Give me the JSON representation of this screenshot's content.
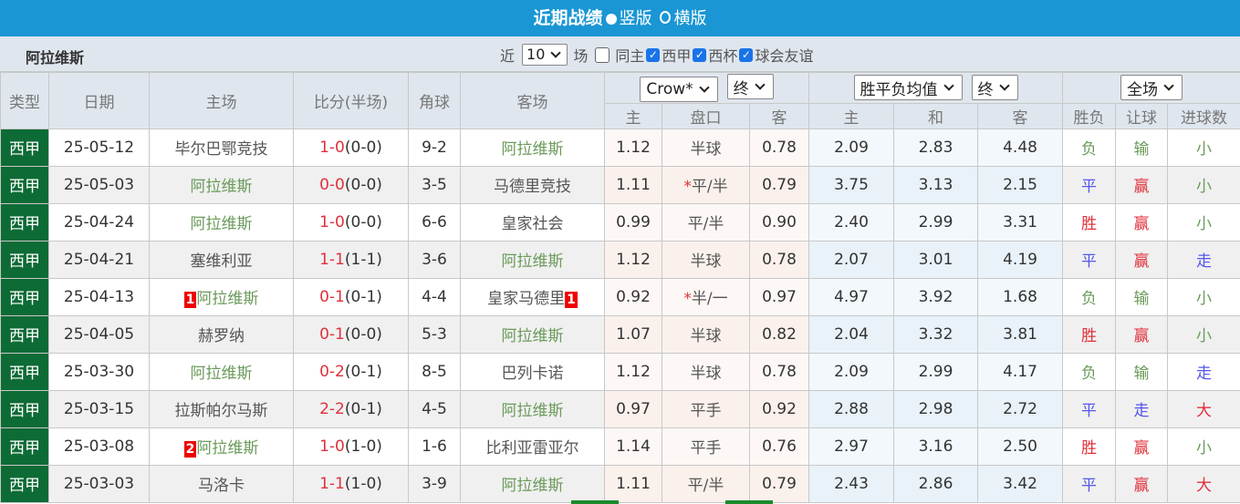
{
  "header": {
    "title": "近期战绩",
    "option_vertical": "竖版",
    "option_horizontal": "横版"
  },
  "team": "阿拉维斯",
  "filters": {
    "near": "近",
    "count": "10",
    "unit": "场",
    "same_home": "同主",
    "leagues": [
      "西甲",
      "西杯",
      "球会友谊"
    ]
  },
  "columns": {
    "type": "类型",
    "date": "日期",
    "home": "主场",
    "score": "比分(半场)",
    "corner": "角球",
    "away": "客场",
    "company": "Crow*",
    "company_mode": "终",
    "odds_type": "胜平负均值",
    "odds_mode": "终",
    "range": "全场",
    "ah": [
      "主",
      "盘口",
      "客"
    ],
    "eu": [
      "主",
      "和",
      "客"
    ],
    "res": [
      "胜负",
      "让球",
      "进球数"
    ]
  },
  "rows": [
    {
      "type": "西甲",
      "date": "25-05-12",
      "home": "毕尔巴鄂竞技",
      "home_card": "",
      "ft": "1-0",
      "ht": "(0-0)",
      "corner": "9-2",
      "away": "阿拉维斯",
      "away_card": "",
      "ah_h": "1.12",
      "ah_line": "半球",
      "ah_star": "",
      "ah_a": "0.78",
      "eu_h": "2.09",
      "eu_d": "2.83",
      "eu_a": "4.48",
      "wl": "负",
      "hc": "输",
      "ou": "小",
      "hg": false
    },
    {
      "type": "西甲",
      "date": "25-05-03",
      "home": "阿拉维斯",
      "home_card": "",
      "ft": "0-0",
      "ht": "(0-0)",
      "corner": "3-5",
      "away": "马德里竞技",
      "away_card": "",
      "ah_h": "1.11",
      "ah_line": "平/半",
      "ah_star": "*",
      "ah_a": "0.79",
      "eu_h": "3.75",
      "eu_d": "3.13",
      "eu_a": "2.15",
      "wl": "平",
      "hc": "赢",
      "ou": "小",
      "hg": true
    },
    {
      "type": "西甲",
      "date": "25-04-24",
      "home": "阿拉维斯",
      "home_card": "",
      "ft": "1-0",
      "ht": "(0-0)",
      "corner": "6-6",
      "away": "皇家社会",
      "away_card": "",
      "ah_h": "0.99",
      "ah_line": "平/半",
      "ah_star": "",
      "ah_a": "0.90",
      "eu_h": "2.40",
      "eu_d": "2.99",
      "eu_a": "3.31",
      "wl": "胜",
      "hc": "赢",
      "ou": "小",
      "hg": true
    },
    {
      "type": "西甲",
      "date": "25-04-21",
      "home": "塞维利亚",
      "home_card": "",
      "ft": "1-1",
      "ht": "(1-1)",
      "corner": "3-6",
      "away": "阿拉维斯",
      "away_card": "",
      "ah_h": "1.12",
      "ah_line": "半球",
      "ah_star": "",
      "ah_a": "0.78",
      "eu_h": "2.07",
      "eu_d": "3.01",
      "eu_a": "4.19",
      "wl": "平",
      "hc": "赢",
      "ou": "走",
      "hg": false
    },
    {
      "type": "西甲",
      "date": "25-04-13",
      "home": "阿拉维斯",
      "home_card": "1",
      "ft": "0-1",
      "ht": "(0-1)",
      "corner": "4-4",
      "away": "皇家马德里",
      "away_card": "1",
      "ah_h": "0.92",
      "ah_line": "半/一",
      "ah_star": "*",
      "ah_a": "0.97",
      "eu_h": "4.97",
      "eu_d": "3.92",
      "eu_a": "1.68",
      "wl": "负",
      "hc": "输",
      "ou": "小",
      "hg": true
    },
    {
      "type": "西甲",
      "date": "25-04-05",
      "home": "赫罗纳",
      "home_card": "",
      "ft": "0-1",
      "ht": "(0-0)",
      "corner": "5-3",
      "away": "阿拉维斯",
      "away_card": "",
      "ah_h": "1.07",
      "ah_line": "半球",
      "ah_star": "",
      "ah_a": "0.82",
      "eu_h": "2.04",
      "eu_d": "3.32",
      "eu_a": "3.81",
      "wl": "胜",
      "hc": "赢",
      "ou": "小",
      "hg": false
    },
    {
      "type": "西甲",
      "date": "25-03-30",
      "home": "阿拉维斯",
      "home_card": "",
      "ft": "0-2",
      "ht": "(0-1)",
      "corner": "8-5",
      "away": "巴列卡诺",
      "away_card": "",
      "ah_h": "1.12",
      "ah_line": "半球",
      "ah_star": "",
      "ah_a": "0.78",
      "eu_h": "2.09",
      "eu_d": "2.99",
      "eu_a": "4.17",
      "wl": "负",
      "hc": "输",
      "ou": "走",
      "hg": true
    },
    {
      "type": "西甲",
      "date": "25-03-15",
      "home": "拉斯帕尔马斯",
      "home_card": "",
      "ft": "2-2",
      "ht": "(0-1)",
      "corner": "4-5",
      "away": "阿拉维斯",
      "away_card": "",
      "ah_h": "0.97",
      "ah_line": "平手",
      "ah_star": "",
      "ah_a": "0.92",
      "eu_h": "2.88",
      "eu_d": "2.98",
      "eu_a": "2.72",
      "wl": "平",
      "hc": "走",
      "ou": "大",
      "hg": false
    },
    {
      "type": "西甲",
      "date": "25-03-08",
      "home": "阿拉维斯",
      "home_card": "2",
      "ft": "1-0",
      "ht": "(1-0)",
      "corner": "1-6",
      "away": "比利亚雷亚尔",
      "away_card": "",
      "ah_h": "1.14",
      "ah_line": "平手",
      "ah_star": "",
      "ah_a": "0.76",
      "eu_h": "2.97",
      "eu_d": "3.16",
      "eu_a": "2.50",
      "wl": "胜",
      "hc": "赢",
      "ou": "小",
      "hg": true
    },
    {
      "type": "西甲",
      "date": "25-03-03",
      "home": "马洛卡",
      "home_card": "",
      "ft": "1-1",
      "ht": "(1-0)",
      "corner": "3-9",
      "away": "阿拉维斯",
      "away_card": "",
      "ah_h": "1.11",
      "ah_line": "平/半",
      "ah_star": "",
      "ah_a": "0.79",
      "eu_h": "2.43",
      "eu_d": "2.86",
      "eu_a": "3.42",
      "wl": "平",
      "hc": "赢",
      "ou": "大",
      "hg": false
    }
  ],
  "colors": {
    "header": "#1a96d4",
    "league": "#0d6b35",
    "team": "#6a9a5a",
    "win": "#e0303a",
    "draw": "#5555ee"
  }
}
